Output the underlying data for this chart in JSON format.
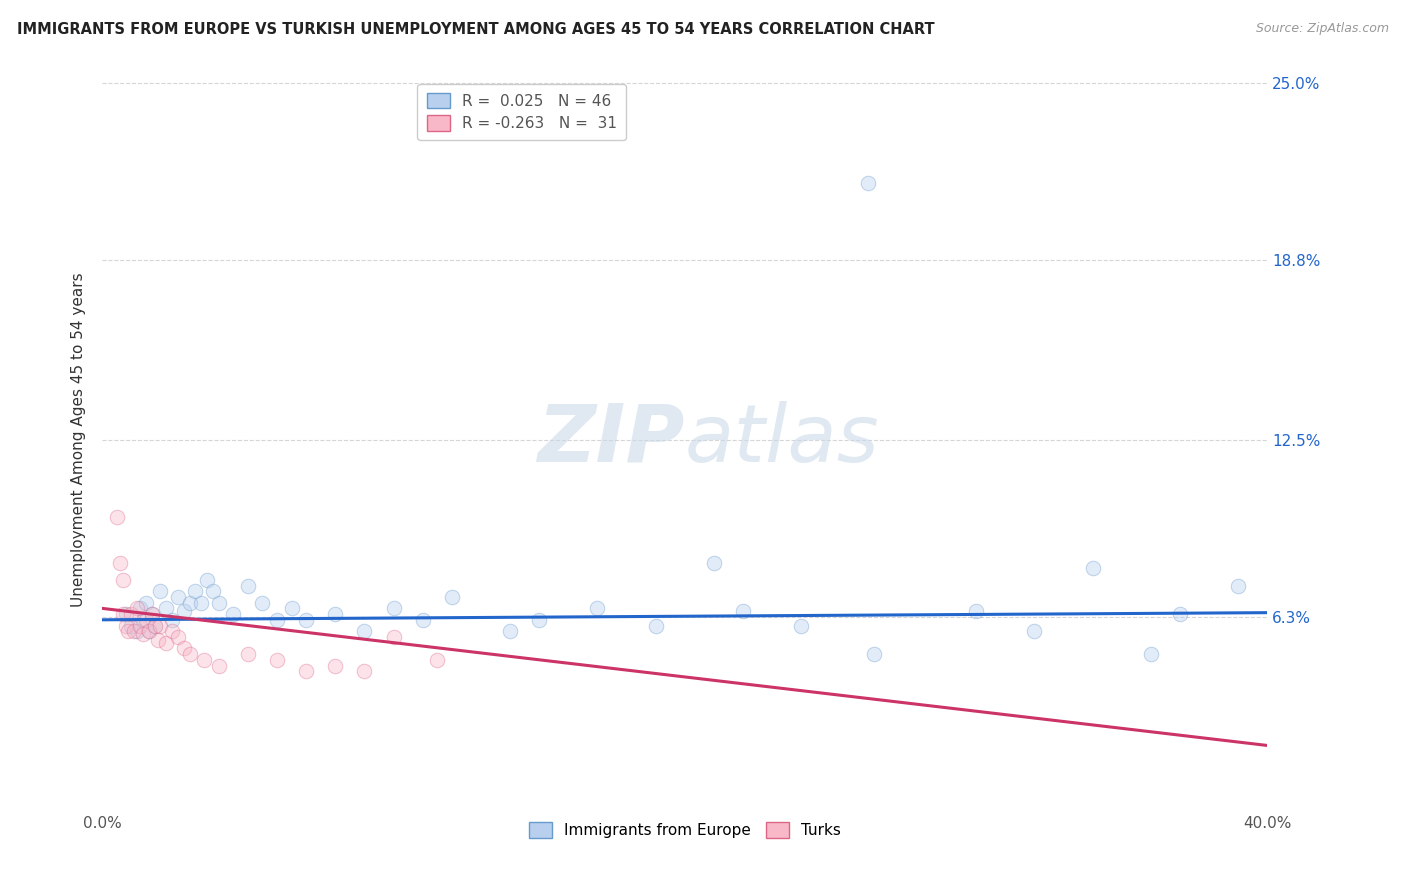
{
  "title": "IMMIGRANTS FROM EUROPE VS TURKISH UNEMPLOYMENT AMONG AGES 45 TO 54 YEARS CORRELATION CHART",
  "source": "Source: ZipAtlas.com",
  "ylabel": "Unemployment Among Ages 45 to 54 years",
  "xlim": [
    0.0,
    0.4
  ],
  "ylim": [
    -0.005,
    0.255
  ],
  "ytick_vals": [
    0.0,
    0.063,
    0.125,
    0.188,
    0.25
  ],
  "ytick_labels_right": [
    "",
    "6.3%",
    "12.5%",
    "18.8%",
    "25.0%"
  ],
  "xtick_vals": [
    0.0,
    0.4
  ],
  "xtick_labels": [
    "0.0%",
    "40.0%"
  ],
  "background_color": "#ffffff",
  "blue_dots": [
    [
      0.008,
      0.064
    ],
    [
      0.01,
      0.06
    ],
    [
      0.012,
      0.058
    ],
    [
      0.013,
      0.066
    ],
    [
      0.014,
      0.062
    ],
    [
      0.015,
      0.068
    ],
    [
      0.016,
      0.058
    ],
    [
      0.017,
      0.064
    ],
    [
      0.018,
      0.06
    ],
    [
      0.02,
      0.072
    ],
    [
      0.022,
      0.066
    ],
    [
      0.024,
      0.062
    ],
    [
      0.026,
      0.07
    ],
    [
      0.028,
      0.065
    ],
    [
      0.03,
      0.068
    ],
    [
      0.032,
      0.072
    ],
    [
      0.034,
      0.068
    ],
    [
      0.036,
      0.076
    ],
    [
      0.038,
      0.072
    ],
    [
      0.04,
      0.068
    ],
    [
      0.045,
      0.064
    ],
    [
      0.05,
      0.074
    ],
    [
      0.055,
      0.068
    ],
    [
      0.06,
      0.062
    ],
    [
      0.065,
      0.066
    ],
    [
      0.07,
      0.062
    ],
    [
      0.08,
      0.064
    ],
    [
      0.09,
      0.058
    ],
    [
      0.1,
      0.066
    ],
    [
      0.11,
      0.062
    ],
    [
      0.12,
      0.07
    ],
    [
      0.14,
      0.058
    ],
    [
      0.15,
      0.062
    ],
    [
      0.17,
      0.066
    ],
    [
      0.19,
      0.06
    ],
    [
      0.22,
      0.065
    ],
    [
      0.24,
      0.06
    ],
    [
      0.265,
      0.05
    ],
    [
      0.3,
      0.065
    ],
    [
      0.32,
      0.058
    ],
    [
      0.34,
      0.08
    ],
    [
      0.36,
      0.05
    ],
    [
      0.37,
      0.064
    ],
    [
      0.39,
      0.074
    ],
    [
      0.263,
      0.215
    ],
    [
      0.21,
      0.082
    ]
  ],
  "pink_dots": [
    [
      0.005,
      0.098
    ],
    [
      0.006,
      0.082
    ],
    [
      0.007,
      0.064
    ],
    [
      0.008,
      0.06
    ],
    [
      0.009,
      0.058
    ],
    [
      0.01,
      0.064
    ],
    [
      0.011,
      0.058
    ],
    [
      0.012,
      0.066
    ],
    [
      0.013,
      0.06
    ],
    [
      0.014,
      0.057
    ],
    [
      0.015,
      0.062
    ],
    [
      0.016,
      0.058
    ],
    [
      0.017,
      0.064
    ],
    [
      0.018,
      0.06
    ],
    [
      0.019,
      0.055
    ],
    [
      0.02,
      0.06
    ],
    [
      0.022,
      0.054
    ],
    [
      0.024,
      0.058
    ],
    [
      0.026,
      0.056
    ],
    [
      0.028,
      0.052
    ],
    [
      0.03,
      0.05
    ],
    [
      0.035,
      0.048
    ],
    [
      0.04,
      0.046
    ],
    [
      0.05,
      0.05
    ],
    [
      0.06,
      0.048
    ],
    [
      0.07,
      0.044
    ],
    [
      0.08,
      0.046
    ],
    [
      0.09,
      0.044
    ],
    [
      0.1,
      0.056
    ],
    [
      0.115,
      0.048
    ],
    [
      0.007,
      0.076
    ]
  ],
  "blue_line_x": [
    0.0,
    0.4
  ],
  "blue_line_y": [
    0.062,
    0.0645
  ],
  "pink_line_x": [
    0.0,
    0.4
  ],
  "pink_line_y": [
    0.066,
    0.018
  ],
  "dot_size": 110,
  "dot_alpha": 0.4,
  "line_color_blue": "#2266cc",
  "line_color_pink": "#cc3366",
  "dot_color_blue": "#b8d0ee",
  "dot_color_pink": "#f8b8c8",
  "dot_edge_blue": "#6699cc",
  "dot_edge_pink": "#dd6688",
  "grid_color": "#bbbbbb",
  "grid_alpha": 0.6
}
